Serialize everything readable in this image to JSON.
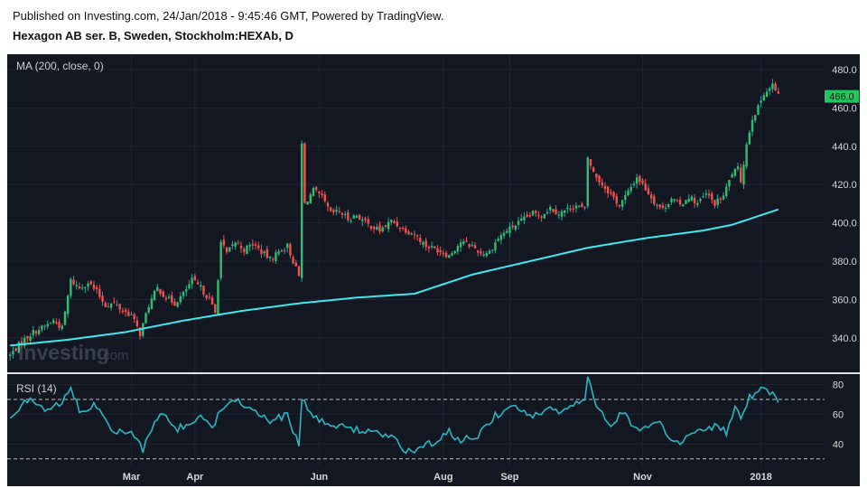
{
  "header": {
    "published": "Published on Investing.com, 24/Jan/2018 - 9:45:46 GMT, Powered by TradingView.",
    "symbol": "Hexagon AB ser. B, Sweden, Stockholm:HEXAb, D"
  },
  "watermark": {
    "brand": "Investing",
    "suffix": ".com"
  },
  "colors": {
    "background": "#131722",
    "grid": "#1f2433",
    "axis_text": "#d7d7d7",
    "up": "#26a69a",
    "up_body": "#2fbf71",
    "down": "#ef5350",
    "ma": "#40e8f0",
    "rsi": "#26b8c4",
    "price_badge": "#22c55e"
  },
  "chart_data": {
    "type": "candlestick",
    "price_panel": {
      "indicator_label": "MA (200, close, 0)",
      "ylim": [
        322,
        488
      ],
      "yticks": [
        340,
        360,
        380,
        400,
        420,
        440,
        460,
        480
      ],
      "ytick_labels": [
        "340.0",
        "360.0",
        "380.0",
        "400.0",
        "420.0",
        "440.0",
        "460.0",
        "480.0"
      ],
      "last_price": 466,
      "last_price_label": "466.0",
      "close_path": [
        [
          0,
          331
        ],
        [
          4,
          338
        ],
        [
          8,
          343
        ],
        [
          12,
          346
        ],
        [
          15,
          349
        ],
        [
          18,
          345
        ],
        [
          21,
          370
        ],
        [
          24,
          366
        ],
        [
          27,
          369
        ],
        [
          30,
          364
        ],
        [
          33,
          357
        ],
        [
          36,
          358
        ],
        [
          39,
          354
        ],
        [
          42,
          352
        ],
        [
          45,
          342
        ],
        [
          48,
          357
        ],
        [
          51,
          366
        ],
        [
          54,
          361
        ],
        [
          57,
          358
        ],
        [
          60,
          363
        ],
        [
          63,
          370
        ],
        [
          66,
          366
        ],
        [
          69,
          360
        ],
        [
          71,
          353
        ],
        [
          73,
          390
        ],
        [
          75,
          384
        ],
        [
          78,
          390
        ],
        [
          81,
          386
        ],
        [
          84,
          389
        ],
        [
          87,
          385
        ],
        [
          90,
          381
        ],
        [
          93,
          385
        ],
        [
          96,
          388
        ],
        [
          98,
          380
        ],
        [
          100,
          372
        ],
        [
          101,
          441
        ],
        [
          102,
          410
        ],
        [
          105,
          417
        ],
        [
          108,
          413
        ],
        [
          111,
          405
        ],
        [
          114,
          406
        ],
        [
          117,
          402
        ],
        [
          120,
          404
        ],
        [
          124,
          399
        ],
        [
          128,
          396
        ],
        [
          132,
          401
        ],
        [
          136,
          397
        ],
        [
          140,
          394
        ],
        [
          144,
          388
        ],
        [
          148,
          386
        ],
        [
          152,
          383
        ],
        [
          156,
          390
        ],
        [
          160,
          388
        ],
        [
          163,
          384
        ],
        [
          166,
          385
        ],
        [
          169,
          392
        ],
        [
          172,
          396
        ],
        [
          175,
          399
        ],
        [
          178,
          402
        ],
        [
          181,
          405
        ],
        [
          184,
          404
        ],
        [
          187,
          408
        ],
        [
          190,
          405
        ],
        [
          193,
          407
        ],
        [
          196,
          409
        ],
        [
          199,
          407
        ],
        [
          200,
          434
        ],
        [
          202,
          426
        ],
        [
          205,
          420
        ],
        [
          208,
          415
        ],
        [
          211,
          409
        ],
        [
          214,
          416
        ],
        [
          217,
          424
        ],
        [
          220,
          418
        ],
        [
          223,
          411
        ],
        [
          226,
          407
        ],
        [
          229,
          413
        ],
        [
          232,
          409
        ],
        [
          235,
          414
        ],
        [
          238,
          410
        ],
        [
          241,
          415
        ],
        [
          244,
          410
        ],
        [
          247,
          414
        ],
        [
          250,
          426
        ],
        [
          252,
          428
        ],
        [
          253,
          422
        ],
        [
          255,
          441
        ],
        [
          257,
          455
        ],
        [
          259,
          460
        ],
        [
          261,
          468
        ],
        [
          263,
          470
        ],
        [
          264,
          472
        ],
        [
          266,
          466
        ]
      ],
      "ma_points": [
        [
          0,
          336
        ],
        [
          20,
          339
        ],
        [
          40,
          343
        ],
        [
          60,
          349
        ],
        [
          80,
          354
        ],
        [
          100,
          358
        ],
        [
          120,
          361
        ],
        [
          140,
          363
        ],
        [
          150,
          368
        ],
        [
          160,
          373
        ],
        [
          180,
          380
        ],
        [
          200,
          387
        ],
        [
          220,
          392
        ],
        [
          240,
          396
        ],
        [
          250,
          399
        ],
        [
          260,
          404
        ],
        [
          266,
          407
        ]
      ]
    },
    "rsi_panel": {
      "indicator_label": "RSI (14)",
      "ylim": [
        25,
        87
      ],
      "yticks": [
        40,
        60,
        80
      ],
      "ytick_labels": [
        "40",
        "60",
        "80"
      ],
      "overbought": 70,
      "oversold": 30,
      "values_path": [
        [
          0,
          56
        ],
        [
          6,
          70
        ],
        [
          12,
          63
        ],
        [
          18,
          67
        ],
        [
          21,
          78
        ],
        [
          24,
          62
        ],
        [
          30,
          66
        ],
        [
          36,
          48
        ],
        [
          42,
          47
        ],
        [
          46,
          36
        ],
        [
          52,
          62
        ],
        [
          58,
          50
        ],
        [
          66,
          58
        ],
        [
          70,
          50
        ],
        [
          73,
          65
        ],
        [
          78,
          71
        ],
        [
          84,
          63
        ],
        [
          90,
          55
        ],
        [
          96,
          60
        ],
        [
          100,
          38
        ],
        [
          101,
          71
        ],
        [
          105,
          58
        ],
        [
          112,
          52
        ],
        [
          120,
          50
        ],
        [
          126,
          48
        ],
        [
          132,
          44
        ],
        [
          136,
          37
        ],
        [
          140,
          34
        ],
        [
          146,
          41
        ],
        [
          152,
          48
        ],
        [
          156,
          42
        ],
        [
          162,
          46
        ],
        [
          168,
          59
        ],
        [
          174,
          66
        ],
        [
          180,
          58
        ],
        [
          186,
          64
        ],
        [
          192,
          62
        ],
        [
          196,
          68
        ],
        [
          199,
          68
        ],
        [
          200,
          85
        ],
        [
          202,
          70
        ],
        [
          208,
          53
        ],
        [
          212,
          62
        ],
        [
          218,
          48
        ],
        [
          224,
          56
        ],
        [
          228,
          45
        ],
        [
          232,
          41
        ],
        [
          238,
          49
        ],
        [
          244,
          52
        ],
        [
          248,
          48
        ],
        [
          251,
          66
        ],
        [
          253,
          55
        ],
        [
          256,
          72
        ],
        [
          260,
          76
        ],
        [
          263,
          75
        ],
        [
          266,
          70
        ]
      ]
    },
    "x_axis": {
      "day_range": [
        -1,
        282
      ],
      "months": [
        {
          "label": "Mar",
          "day": 42
        },
        {
          "label": "Apr",
          "day": 64
        },
        {
          "label": "Jun",
          "day": 107
        },
        {
          "label": "Aug",
          "day": 150
        },
        {
          "label": "Sep",
          "day": 173
        },
        {
          "label": "Nov",
          "day": 219
        },
        {
          "label": "2018",
          "day": 260
        }
      ]
    }
  }
}
